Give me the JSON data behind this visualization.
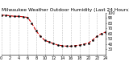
{
  "title": "Milwaukee Weather Outdoor Humidity (Last 24 Hours)",
  "x_values": [
    0,
    1,
    2,
    3,
    4,
    5,
    6,
    7,
    8,
    9,
    10,
    11,
    12,
    13,
    14,
    15,
    16,
    17,
    18,
    19,
    20,
    21,
    22,
    23,
    24
  ],
  "y_values": [
    95,
    95,
    94,
    93,
    93,
    92,
    91,
    80,
    65,
    55,
    47,
    44,
    41,
    38,
    37,
    36,
    36,
    37,
    38,
    40,
    42,
    48,
    55,
    60,
    63
  ],
  "ylim": [
    20,
    100
  ],
  "xlim": [
    0,
    24
  ],
  "y_ticks": [
    30,
    40,
    50,
    60,
    70,
    80,
    90,
    100
  ],
  "x_ticks": [
    0,
    2,
    4,
    6,
    8,
    10,
    12,
    14,
    16,
    18,
    20,
    22,
    24
  ],
  "line_color": "#cc0000",
  "marker_color": "#000000",
  "grid_color": "#bbbbbb",
  "background_color": "#ffffff",
  "title_fontsize": 4.2,
  "tick_fontsize": 3.5,
  "line_width": 0.8,
  "marker_size": 1.5
}
